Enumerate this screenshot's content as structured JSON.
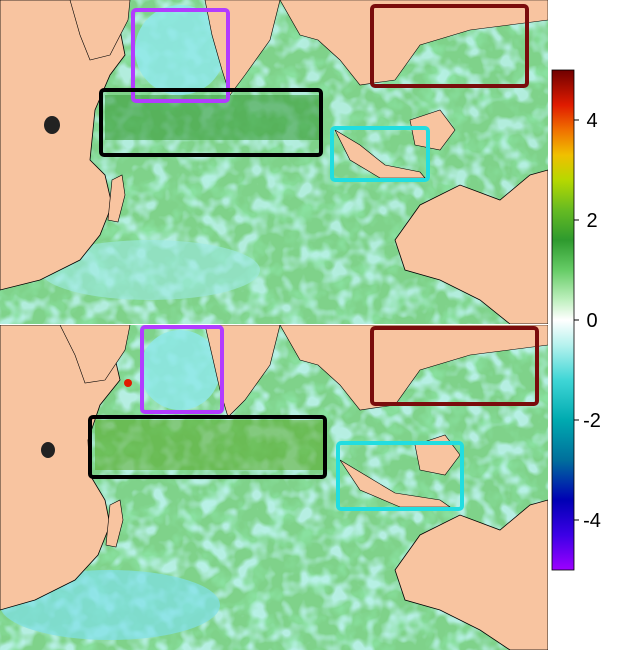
{
  "colorbar": {
    "min": -5,
    "max": 5,
    "ticks": [
      {
        "value": 4,
        "label": "4"
      },
      {
        "value": 2,
        "label": "2"
      },
      {
        "value": 0,
        "label": "0"
      },
      {
        "value": -2,
        "label": "-2"
      },
      {
        "value": -4,
        "label": "-4"
      }
    ],
    "stops": [
      {
        "value": -5,
        "color": "#9d00ff"
      },
      {
        "value": -4.3,
        "color": "#3c00e6"
      },
      {
        "value": -3.6,
        "color": "#0000b4"
      },
      {
        "value": -2.8,
        "color": "#006f9c"
      },
      {
        "value": -2.0,
        "color": "#00aab0"
      },
      {
        "value": -1.2,
        "color": "#3fd6d6"
      },
      {
        "value": -0.5,
        "color": "#b6f2ee"
      },
      {
        "value": 0,
        "color": "#ffffff"
      },
      {
        "value": 0.4,
        "color": "#bff0bf"
      },
      {
        "value": 1.0,
        "color": "#66cc66"
      },
      {
        "value": 1.6,
        "color": "#2e9a2e"
      },
      {
        "value": 2.2,
        "color": "#66bb22"
      },
      {
        "value": 2.8,
        "color": "#b6d800"
      },
      {
        "value": 3.3,
        "color": "#f0c000"
      },
      {
        "value": 3.8,
        "color": "#f07000"
      },
      {
        "value": 4.3,
        "color": "#e01b00"
      },
      {
        "value": 5,
        "color": "#700000"
      }
    ]
  },
  "colors": {
    "land": "#f8c4a0",
    "ocean": "#7fd28a",
    "box_purple": "#b23cff",
    "box_black": "#000000",
    "box_cyan": "#22dde0",
    "box_darkred": "#7a0c0c"
  },
  "panels": [
    {
      "id": "top",
      "boxes": [
        "purple",
        "black",
        "cyan",
        "darkred"
      ]
    },
    {
      "id": "bottom",
      "boxes": [
        "purple",
        "black",
        "cyan",
        "darkred"
      ]
    }
  ]
}
